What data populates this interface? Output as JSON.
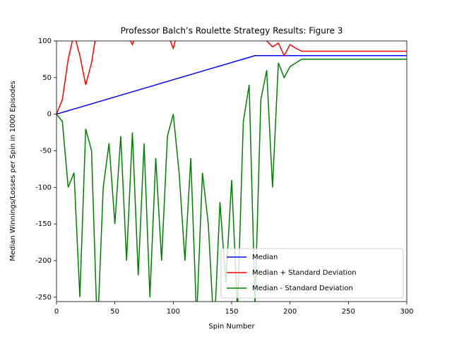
{
  "chart_data": {
    "type": "line",
    "title": "Professor Balch’s Roulette Strategy Results: Figure 3",
    "x_label": "Spin Number",
    "y_label": "Median Winnings/Losses per Spin in 1000 Episodes",
    "x": [
      0,
      5,
      10,
      15,
      20,
      25,
      30,
      35,
      40,
      45,
      50,
      55,
      60,
      65,
      70,
      75,
      80,
      85,
      90,
      95,
      100,
      105,
      110,
      115,
      120,
      125,
      130,
      135,
      140,
      145,
      150,
      155,
      160,
      165,
      170,
      175,
      180,
      185,
      190,
      195,
      200,
      205,
      210,
      215,
      220,
      225,
      230,
      235,
      240,
      245,
      250,
      255,
      260,
      265,
      270,
      275,
      280,
      285,
      290,
      295,
      300
    ],
    "series": [
      {
        "name": "Median",
        "color": "#0000ff",
        "values": [
          0,
          2.4,
          4.7,
          7.1,
          9.4,
          11.8,
          14.1,
          16.5,
          18.8,
          21.2,
          23.5,
          25.9,
          28.2,
          30.6,
          32.9,
          35.3,
          37.6,
          40,
          42.4,
          44.7,
          47.1,
          49.4,
          51.8,
          54.1,
          56.5,
          58.8,
          61.2,
          63.5,
          65.9,
          68.2,
          70.6,
          72.9,
          75.3,
          77.6,
          80,
          80,
          80,
          80,
          80,
          80,
          80,
          80,
          80,
          80,
          80,
          80,
          80,
          80,
          80,
          80,
          80,
          80,
          80,
          80,
          80,
          80,
          80,
          80,
          80,
          80,
          80
        ]
      },
      {
        "name": "Median + Standard Deviation",
        "color": "#ff0000",
        "values": [
          0,
          20,
          75,
          110,
          80,
          40,
          70,
          120,
          110,
          130,
          115,
          105,
          110,
          95,
          120,
          130,
          125,
          115,
          120,
          110,
          90,
          120,
          130,
          120,
          125,
          130,
          120,
          125,
          130,
          120,
          115,
          125,
          130,
          120,
          115,
          110,
          100,
          92,
          97,
          80,
          95,
          90,
          86,
          86,
          86,
          86,
          86,
          86,
          86,
          86,
          86,
          86,
          86,
          86,
          86,
          86,
          86,
          86,
          86,
          86,
          86
        ]
      },
      {
        "name": "Median - Standard Deviation",
        "color": "#008000",
        "values": [
          0,
          -10,
          -100,
          -80,
          -250,
          -20,
          -50,
          -300,
          -100,
          -40,
          -150,
          -30,
          -200,
          -25,
          -220,
          -40,
          -250,
          -60,
          -200,
          -30,
          0,
          -80,
          -200,
          -60,
          -280,
          -80,
          -150,
          -300,
          -120,
          -230,
          -90,
          -270,
          -10,
          40,
          -260,
          20,
          60,
          -100,
          70,
          50,
          65,
          70,
          75,
          75,
          75,
          75,
          75,
          75,
          75,
          75,
          75,
          75,
          75,
          75,
          75,
          75,
          75,
          75,
          75,
          75,
          75
        ]
      }
    ],
    "xlim": [
      0,
      300
    ],
    "xticks": [
      0,
      50,
      100,
      150,
      200,
      250,
      300
    ],
    "ylim": [
      -256,
      100
    ],
    "yticks": [
      -250,
      -200,
      -150,
      -100,
      -50,
      0,
      50,
      100
    ],
    "legend": "lower right"
  }
}
